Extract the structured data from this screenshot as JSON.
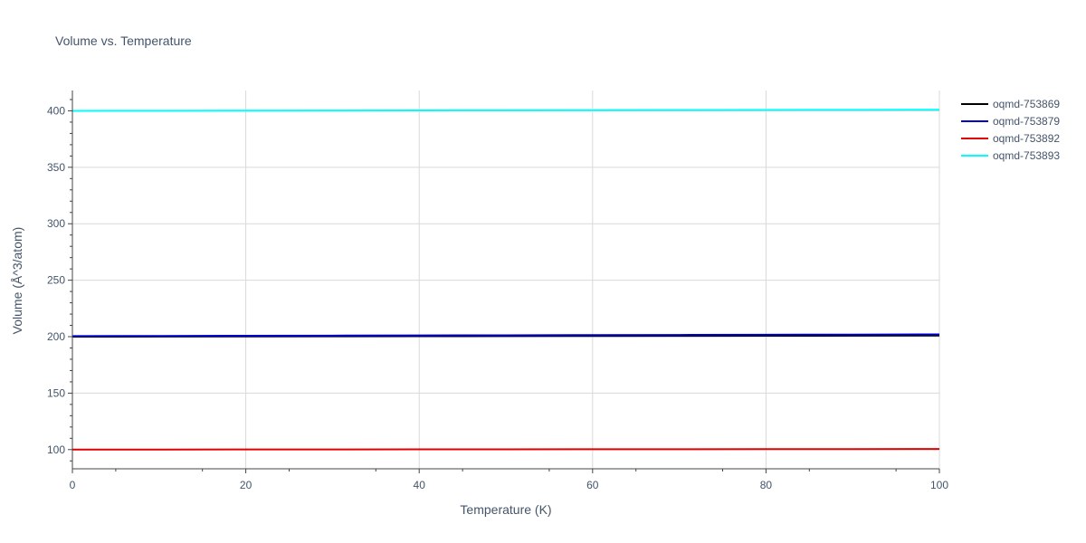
{
  "chart_data": {
    "type": "line",
    "title": "Volume vs. Temperature",
    "xlabel": "Temperature (K)",
    "ylabel": "Volume (Å^3/atom)",
    "xlim": [
      0,
      100
    ],
    "ylim": [
      83,
      418
    ],
    "x_ticks": [
      0,
      20,
      40,
      60,
      80,
      100
    ],
    "y_ticks": [
      100,
      150,
      200,
      250,
      300,
      350,
      400
    ],
    "x_tick_labels": [
      "0",
      "20",
      "40",
      "60",
      "80",
      "100"
    ],
    "y_tick_labels": [
      "100",
      "150",
      "200",
      "250",
      "300",
      "350",
      "400"
    ],
    "grid": true,
    "legend_position": "top-right outside",
    "x": [
      0,
      10,
      20,
      30,
      40,
      50,
      60,
      70,
      80,
      90,
      100
    ],
    "series": [
      {
        "name": "oqmd-753869",
        "color": "#000000",
        "values": [
          200.0,
          200.1,
          200.2,
          200.3,
          200.4,
          200.5,
          200.6,
          200.7,
          200.8,
          200.9,
          201.0
        ]
      },
      {
        "name": "oqmd-753879",
        "color": "#0000cc",
        "values": [
          200.5,
          200.65,
          200.8,
          200.95,
          201.1,
          201.25,
          201.4,
          201.55,
          201.7,
          201.85,
          202.0
        ]
      },
      {
        "name": "oqmd-753892",
        "color": "#e00000",
        "values": [
          100.0,
          100.05,
          100.1,
          100.15,
          100.2,
          100.25,
          100.3,
          100.35,
          100.4,
          100.45,
          100.5
        ]
      },
      {
        "name": "oqmd-753893",
        "color": "#00ffff",
        "values": [
          400.0,
          400.1,
          400.2,
          400.3,
          400.4,
          400.5,
          400.6,
          400.7,
          400.8,
          400.9,
          401.0
        ]
      }
    ]
  }
}
